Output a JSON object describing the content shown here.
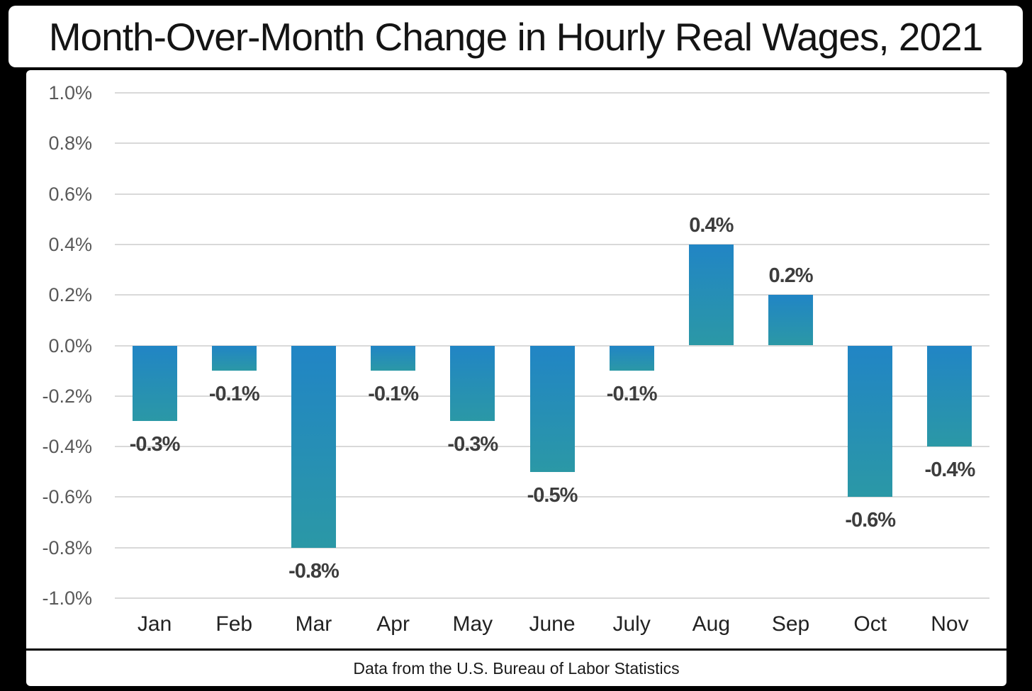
{
  "page": {
    "title": "Month-Over-Month Change in Hourly Real Wages, 2021",
    "footer": "Data from the U.S. Bureau of Labor Statistics",
    "background": "#000000",
    "panel_background": "#ffffff"
  },
  "chart_data": {
    "type": "bar",
    "title": "Month-Over-Month Change in Hourly Real Wages, 2021",
    "categories": [
      "Jan",
      "Feb",
      "Mar",
      "Apr",
      "May",
      "June",
      "July",
      "Aug",
      "Sep",
      "Oct",
      "Nov"
    ],
    "values": [
      -0.3,
      -0.1,
      -0.8,
      -0.1,
      -0.3,
      -0.5,
      -0.1,
      0.4,
      0.2,
      -0.6,
      -0.4
    ],
    "value_labels": [
      "-0.3%",
      "-0.1%",
      "-0.8%",
      "-0.1%",
      "-0.3%",
      "-0.5%",
      "-0.1%",
      "0.4%",
      "0.2%",
      "-0.6%",
      "-0.4%"
    ],
    "xlabel": "",
    "ylabel": "",
    "ylim": [
      -1.0,
      1.0
    ],
    "yticks": [
      1.0,
      0.8,
      0.6,
      0.4,
      0.2,
      0.0,
      -0.2,
      -0.4,
      -0.6,
      -0.8,
      -1.0
    ],
    "ytick_labels": [
      "1.0%",
      "0.8%",
      "0.6%",
      "0.4%",
      "0.2%",
      "0.0%",
      "-0.2%",
      "-0.4%",
      "-0.6%",
      "-0.8%",
      "-1.0%"
    ],
    "grid": "horizontal",
    "legend": "none",
    "source_note": "Data from the U.S. Bureau of Labor Statistics",
    "colors": {
      "bar_gradient_top": "#2185c5",
      "bar_gradient_bottom": "#2b98a6",
      "gridline": "#d9d9d9",
      "ytick_text": "#595959",
      "xtick_text": "#222222",
      "value_label_text": "#3d3d3d",
      "divider": "#000000"
    }
  }
}
